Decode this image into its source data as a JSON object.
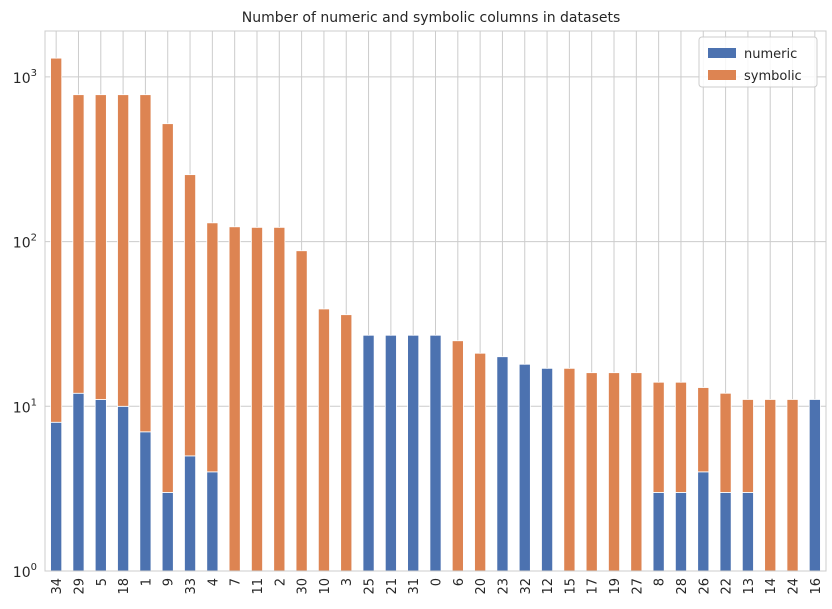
{
  "chart_data": {
    "type": "bar",
    "stacked": true,
    "title": "Number of numeric and symbolic columns in datasets",
    "xlabel": "",
    "ylabel": "",
    "yscale": "log",
    "ylim": [
      1,
      1900
    ],
    "yticks": [
      {
        "value": 1,
        "base": "10",
        "exp": "0"
      },
      {
        "value": 10,
        "base": "10",
        "exp": "1"
      },
      {
        "value": 100,
        "base": "10",
        "exp": "2"
      },
      {
        "value": 1000,
        "base": "10",
        "exp": "3"
      }
    ],
    "grid": true,
    "legend_position": "top-right",
    "categories": [
      "34",
      "29",
      "5",
      "18",
      "1",
      "9",
      "33",
      "4",
      "7",
      "11",
      "2",
      "30",
      "10",
      "3",
      "25",
      "21",
      "31",
      "0",
      "6",
      "20",
      "23",
      "32",
      "12",
      "15",
      "17",
      "19",
      "27",
      "8",
      "28",
      "26",
      "22",
      "13",
      "14",
      "24",
      "16"
    ],
    "series": [
      {
        "name": "numeric",
        "color": "#4c72b0",
        "values": [
          8,
          12,
          11,
          10,
          7,
          3,
          5,
          4,
          0,
          0,
          0,
          0,
          0,
          0,
          27,
          27,
          27,
          27,
          0,
          0,
          20,
          18,
          17,
          0,
          0,
          0,
          0,
          3,
          3,
          4,
          3,
          3,
          0,
          0,
          11
        ]
      },
      {
        "name": "symbolic",
        "color": "#dd8452",
        "values": [
          1292,
          768,
          769,
          770,
          773,
          517,
          250,
          126,
          123,
          122,
          122,
          88,
          39,
          36,
          0,
          0,
          0,
          0,
          25,
          21,
          0,
          0,
          0,
          17,
          16,
          16,
          16,
          11,
          11,
          9,
          9,
          8,
          11,
          11,
          0
        ]
      }
    ]
  }
}
